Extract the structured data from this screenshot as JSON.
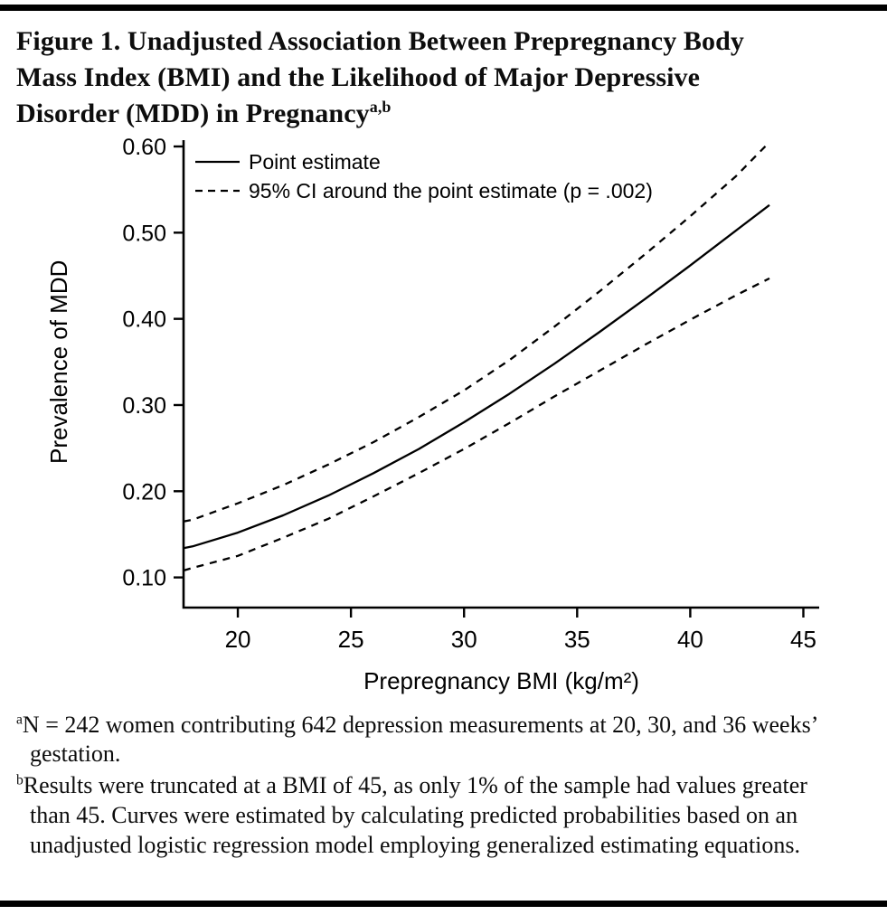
{
  "figure": {
    "title_lines": [
      "Figure 1. Unadjusted Association Between Prepregnancy Body",
      "Mass Index (BMI) and the Likelihood of Major Depressive",
      "Disorder (MDD) in Pregnancy"
    ],
    "title_superscript": "a,b"
  },
  "chart_data": {
    "type": "line",
    "xlabel": "Prepregnancy BMI (kg/m²)",
    "ylabel": "Prevalence of MDD",
    "xlim": [
      17.6,
      45.7
    ],
    "ylim": [
      0.065,
      0.6
    ],
    "xtick_values": [
      20,
      25,
      30,
      35,
      40,
      45
    ],
    "xtick_labels": [
      "20",
      "25",
      "30",
      "35",
      "40",
      "45"
    ],
    "ytick_values": [
      0.1,
      0.2,
      0.3,
      0.4,
      0.5,
      0.6
    ],
    "ytick_labels": [
      "0.10",
      "0.20",
      "0.30",
      "0.40",
      "0.50",
      "0.60"
    ],
    "grid": false,
    "legend_position": "top-left-inside",
    "x": [
      17.6,
      18,
      20,
      22,
      24,
      26,
      28,
      30,
      32,
      34,
      36,
      38,
      40,
      42,
      43.5
    ],
    "series": [
      {
        "name": "Point estimate",
        "style": "solid",
        "values": [
          0.134,
          0.136,
          0.152,
          0.172,
          0.195,
          0.221,
          0.249,
          0.28,
          0.313,
          0.348,
          0.385,
          0.423,
          0.462,
          0.502,
          0.532
        ]
      },
      {
        "name": "95% CI upper bound",
        "style": "dashed",
        "values": [
          0.165,
          0.167,
          0.186,
          0.207,
          0.231,
          0.257,
          0.286,
          0.317,
          0.352,
          0.391,
          0.432,
          0.475,
          0.519,
          0.565,
          0.605
        ]
      },
      {
        "name": "95% CI lower bound",
        "style": "dashed",
        "values": [
          0.108,
          0.111,
          0.125,
          0.146,
          0.168,
          0.194,
          0.221,
          0.249,
          0.279,
          0.31,
          0.34,
          0.37,
          0.399,
          0.427,
          0.447
        ]
      }
    ],
    "legend": [
      {
        "label": "Point estimate",
        "style": "solid"
      },
      {
        "label": "95% CI around the point estimate (p = .002)",
        "style": "dashed"
      }
    ]
  },
  "footnotes": [
    {
      "marker": "a",
      "text": "N = 242 women contributing 642 depression measurements at 20, 30, and 36 weeks’ gestation."
    },
    {
      "marker": "b",
      "text": "Results were truncated at a BMI of 45, as only 1% of the sample had values greater than 45. Curves were estimated by calculating predicted probabilities based on an unadjusted logistic regression model employing generalized estimating equations."
    }
  ]
}
